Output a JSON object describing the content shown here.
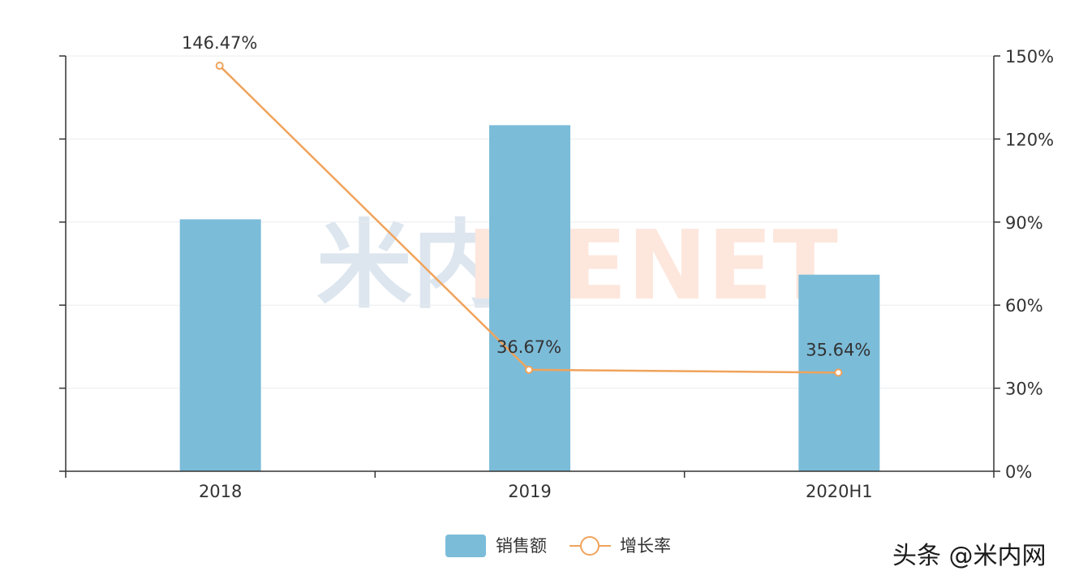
{
  "chart_data": {
    "type": "bar",
    "categories": [
      "2018",
      "2019",
      "2020H1"
    ],
    "series": [
      {
        "name": "销售额",
        "type": "bar",
        "axis": "left",
        "values": [
          91,
          125,
          71
        ],
        "color": "#7bbcd9"
      },
      {
        "name": "增长率",
        "type": "line",
        "axis": "right",
        "values": [
          146.47,
          36.67,
          35.64
        ],
        "labels": [
          "146.47%",
          "36.67%",
          "35.64%"
        ],
        "color": "#f0a35b"
      }
    ],
    "y_left": {
      "ylim": [
        0,
        150
      ],
      "ticks": [
        0,
        30,
        60,
        90,
        120,
        150
      ],
      "tick_labels_shown": false
    },
    "y_right": {
      "ylim": [
        0,
        150
      ],
      "ticks": [
        "0%",
        "30%",
        "60%",
        "90%",
        "120%",
        "150%"
      ]
    },
    "grid": true,
    "legend_position": "bottom-center"
  },
  "watermark": {
    "logo_chars": "米内",
    "brand": "MENET",
    "logo_color": "#dde6ef",
    "brand_color": "#fde6dc"
  },
  "credit": "头条 @米内网"
}
